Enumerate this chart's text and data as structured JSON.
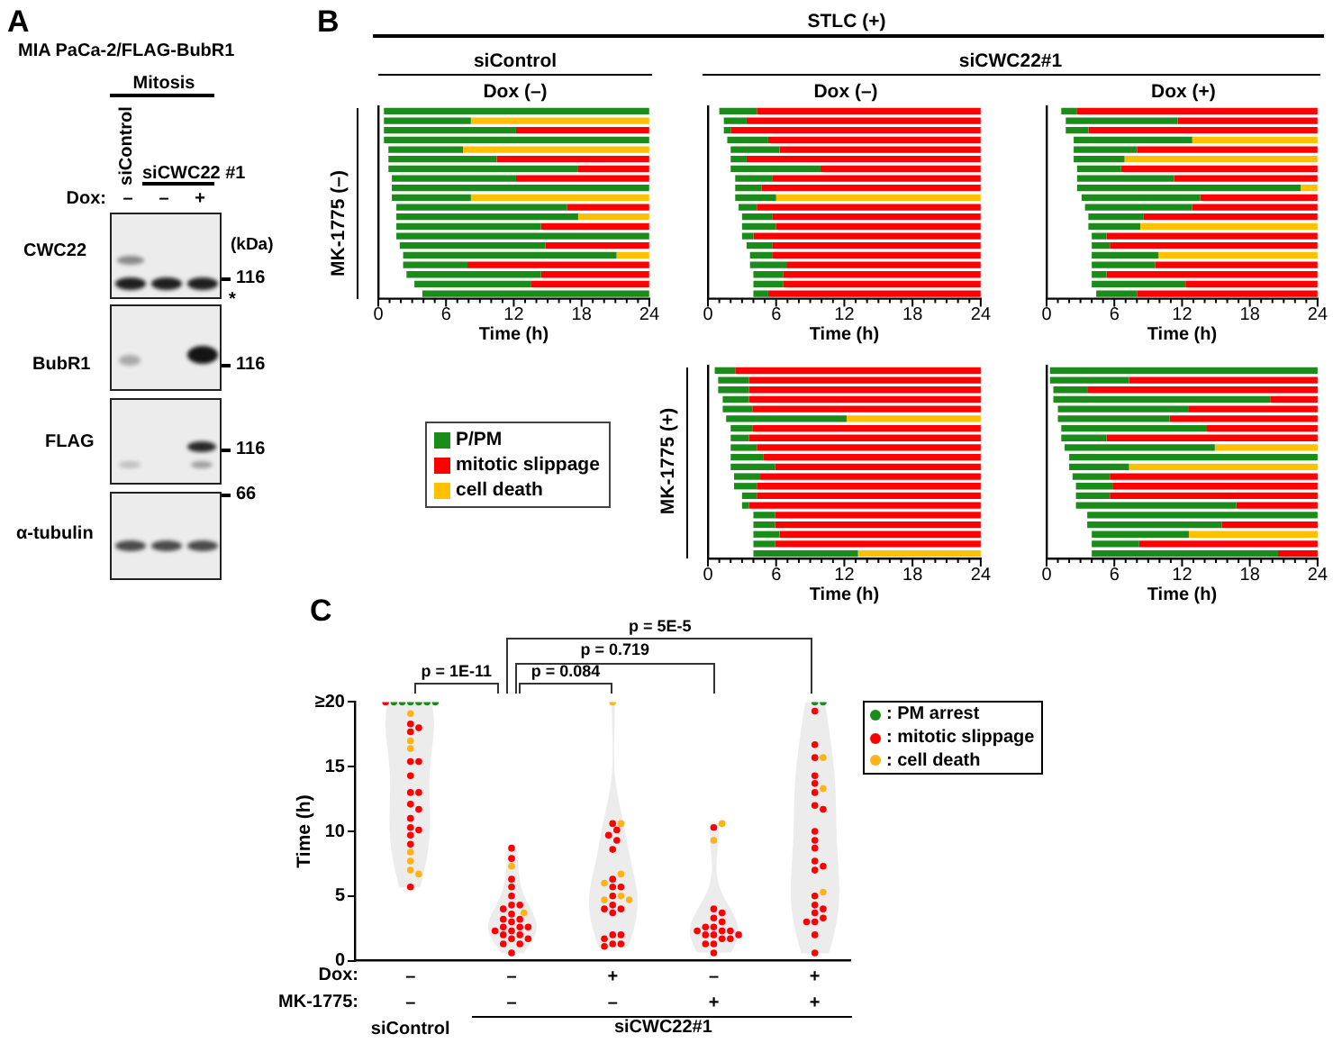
{
  "chart_data": [
    {
      "type": "other",
      "title": "MIA PaCa-2/FLAG-BubR1",
      "annotations": [
        "A",
        "Mitosis",
        "siControl",
        "siCWC22 #1",
        "Dox:",
        "–",
        "–",
        "+",
        "CWC22",
        "BubR1",
        "FLAG",
        "α-tubulin",
        "(kDa)",
        "116",
        "*",
        "116",
        "116",
        "66"
      ]
    },
    {
      "type": "bar",
      "orientation": "horizontal",
      "title": "Dox (–)",
      "xlabel": "Time (h)",
      "ylabel": "MK-1775 (–)",
      "annotations": [
        "B",
        "STLC (+)",
        "siControl"
      ],
      "legend": "bottom",
      "tick_labels": "x",
      "categories": [
        null,
        null,
        null,
        null,
        null,
        null,
        null,
        null,
        null,
        null,
        null,
        null,
        null,
        null,
        null,
        null,
        null,
        null,
        null,
        null
      ],
      "xlim": [
        0,
        24
      ],
      "xticks": [
        0,
        {
          "value": 1,
          "label": null
        },
        {
          "value": 2,
          "label": null
        },
        {
          "value": 3,
          "label": null
        },
        {
          "value": 4,
          "label": null
        },
        {
          "value": 5,
          "label": null
        },
        6,
        {
          "value": 7,
          "label": null
        },
        {
          "value": 8,
          "label": null
        },
        {
          "value": 9,
          "label": null
        },
        {
          "value": 10,
          "label": null
        },
        {
          "value": 11,
          "label": null
        },
        12,
        {
          "value": 13,
          "label": null
        },
        {
          "value": 14,
          "label": null
        },
        {
          "value": 15,
          "label": null
        },
        {
          "value": 16,
          "label": null
        },
        {
          "value": 17,
          "label": null
        },
        18,
        {
          "value": 19,
          "label": null
        },
        {
          "value": 20,
          "label": null
        },
        {
          "value": 21,
          "label": null
        },
        {
          "value": 22,
          "label": null
        },
        {
          "value": 23,
          "label": null
        },
        24
      ],
      "series": [
        {
          "name": "P/PM",
          "color": "#1a8c1a",
          "base": [
            0.5,
            0.5,
            0.5,
            0.5,
            0.9,
            0.9,
            0.9,
            1.2,
            1.2,
            1.2,
            1.6,
            1.6,
            1.6,
            1.6,
            1.9,
            2.2,
            2.2,
            2.5,
            3.2,
            3.9
          ],
          "values": [
            23.5,
            7.7,
            11.7,
            23.5,
            6.6,
            9.6,
            16.8,
            11.0,
            22.8,
            7.0,
            15.1,
            16.1,
            12.8,
            22.4,
            12.9,
            18.9,
            5.7,
            11.9,
            10.3,
            20.1
          ]
        },
        {
          "name": "mitotic slippage",
          "color": "#ff0000",
          "base": [
            null,
            null,
            12.2,
            null,
            null,
            10.5,
            17.7,
            12.2,
            null,
            null,
            16.7,
            null,
            14.4,
            null,
            14.8,
            null,
            7.9,
            14.4,
            13.5,
            null
          ],
          "values": [
            null,
            null,
            11.8,
            null,
            null,
            13.5,
            6.3,
            11.8,
            null,
            null,
            7.3,
            null,
            9.6,
            null,
            9.2,
            null,
            16.1,
            9.6,
            10.5,
            null
          ]
        },
        {
          "name": "cell death",
          "color": "#ffc000",
          "base": [
            null,
            8.2,
            null,
            null,
            7.5,
            null,
            null,
            null,
            null,
            8.2,
            null,
            17.7,
            null,
            null,
            null,
            21.1,
            null,
            null,
            null,
            null
          ],
          "values": [
            null,
            15.8,
            null,
            null,
            16.5,
            null,
            null,
            null,
            null,
            15.8,
            null,
            6.3,
            null,
            null,
            null,
            2.9,
            null,
            null,
            null,
            null
          ]
        }
      ]
    },
    {
      "type": "bar",
      "orientation": "horizontal",
      "title": "Dox (–)",
      "xlabel": "Time (h)",
      "annotations": [
        "siCWC22#1"
      ],
      "tick_labels": "x",
      "categories": [
        null,
        null,
        null,
        null,
        null,
        null,
        null,
        null,
        null,
        null,
        null,
        null,
        null,
        null,
        null,
        null,
        null,
        null,
        null,
        null
      ],
      "xlim": [
        0,
        24
      ],
      "xticks": [
        0,
        {
          "value": 1,
          "label": null
        },
        {
          "value": 2,
          "label": null
        },
        {
          "value": 3,
          "label": null
        },
        {
          "value": 4,
          "label": null
        },
        {
          "value": 5,
          "label": null
        },
        6,
        {
          "value": 7,
          "label": null
        },
        {
          "value": 8,
          "label": null
        },
        {
          "value": 9,
          "label": null
        },
        {
          "value": 10,
          "label": null
        },
        {
          "value": 11,
          "label": null
        },
        12,
        {
          "value": 13,
          "label": null
        },
        {
          "value": 14,
          "label": null
        },
        {
          "value": 15,
          "label": null
        },
        {
          "value": 16,
          "label": null
        },
        {
          "value": 17,
          "label": null
        },
        18,
        {
          "value": 19,
          "label": null
        },
        {
          "value": 20,
          "label": null
        },
        {
          "value": 21,
          "label": null
        },
        {
          "value": 22,
          "label": null
        },
        {
          "value": 23,
          "label": null
        },
        24
      ],
      "series": [
        {
          "color": "#1a8c1a",
          "base": [
            1.0,
            1.4,
            1.4,
            1.7,
            2.0,
            2.0,
            2.0,
            2.4,
            2.4,
            2.4,
            2.7,
            3.0,
            3.0,
            3.0,
            3.4,
            3.7,
            3.7,
            4.0,
            4.0,
            4.0
          ],
          "values": [
            3.3,
            2.0,
            0.6,
            3.6,
            4.3,
            1.4,
            7.9,
            3.3,
            2.3,
            3.6,
            1.6,
            2.7,
            3.0,
            1.0,
            2.3,
            2.0,
            3.2,
            2.6,
            2.6,
            1.3
          ]
        },
        {
          "color": "#ff0000",
          "base": [
            4.3,
            3.4,
            2.0,
            5.3,
            6.3,
            3.4,
            9.9,
            5.7,
            4.7,
            null,
            4.3,
            5.7,
            6.0,
            4.0,
            5.7,
            5.7,
            6.9,
            6.6,
            6.6,
            5.3
          ],
          "values": [
            19.7,
            20.6,
            22.0,
            18.7,
            17.7,
            20.6,
            14.1,
            18.3,
            19.3,
            null,
            19.7,
            18.3,
            18.0,
            20.0,
            18.3,
            18.3,
            17.1,
            17.4,
            17.4,
            18.7
          ]
        },
        {
          "color": "#ffc000",
          "base": [
            null,
            null,
            null,
            null,
            null,
            null,
            null,
            null,
            null,
            6.0,
            null,
            null,
            null,
            null,
            null,
            null,
            null,
            null,
            null,
            null
          ],
          "values": [
            null,
            null,
            null,
            null,
            null,
            null,
            null,
            null,
            null,
            18.0,
            null,
            null,
            null,
            null,
            null,
            null,
            null,
            null,
            null,
            null
          ]
        }
      ]
    },
    {
      "type": "bar",
      "orientation": "horizontal",
      "title": "Dox (+)",
      "xlabel": "Time (h)",
      "tick_labels": "x",
      "categories": [
        null,
        null,
        null,
        null,
        null,
        null,
        null,
        null,
        null,
        null,
        null,
        null,
        null,
        null,
        null,
        null,
        null,
        null,
        null,
        null
      ],
      "xlim": [
        0,
        24
      ],
      "xticks": [
        0,
        {
          "value": 1,
          "label": null
        },
        {
          "value": 2,
          "label": null
        },
        {
          "value": 3,
          "label": null
        },
        {
          "value": 4,
          "label": null
        },
        {
          "value": 5,
          "label": null
        },
        6,
        {
          "value": 7,
          "label": null
        },
        {
          "value": 8,
          "label": null
        },
        {
          "value": 9,
          "label": null
        },
        {
          "value": 10,
          "label": null
        },
        {
          "value": 11,
          "label": null
        },
        12,
        {
          "value": 13,
          "label": null
        },
        {
          "value": 14,
          "label": null
        },
        {
          "value": 15,
          "label": null
        },
        {
          "value": 16,
          "label": null
        },
        {
          "value": 17,
          "label": null
        },
        18,
        {
          "value": 19,
          "label": null
        },
        {
          "value": 20,
          "label": null
        },
        {
          "value": 21,
          "label": null
        },
        {
          "value": 22,
          "label": null
        },
        {
          "value": 23,
          "label": null
        },
        24
      ],
      "series": [
        {
          "color": "#1a8c1a",
          "base": [
            1.3,
            1.7,
            1.7,
            2.4,
            2.4,
            2.4,
            2.7,
            2.7,
            2.7,
            3.1,
            3.4,
            3.7,
            3.7,
            4.0,
            4.0,
            4.0,
            4.0,
            4.0,
            4.0,
            4.4
          ],
          "values": [
            1.4,
            9.9,
            2.0,
            10.5,
            5.6,
            4.5,
            3.9,
            8.6,
            19.8,
            10.5,
            9.5,
            4.9,
            4.6,
            1.3,
            1.6,
            5.9,
            5.6,
            1.3,
            8.3,
            3.6
          ]
        },
        {
          "color": "#ff0000",
          "base": [
            2.7,
            11.6,
            3.7,
            null,
            8.0,
            null,
            6.6,
            11.3,
            null,
            13.6,
            12.9,
            8.6,
            null,
            5.3,
            5.6,
            null,
            9.6,
            5.3,
            12.3,
            8.0
          ],
          "values": [
            21.3,
            12.4,
            20.3,
            null,
            16.0,
            null,
            17.4,
            12.7,
            null,
            10.4,
            11.1,
            15.4,
            null,
            18.7,
            18.4,
            null,
            14.4,
            18.7,
            11.7,
            16.0
          ]
        },
        {
          "color": "#ffc000",
          "base": [
            null,
            null,
            null,
            12.9,
            null,
            6.9,
            null,
            null,
            22.5,
            null,
            null,
            null,
            8.3,
            null,
            null,
            9.9,
            null,
            null,
            null,
            null
          ],
          "values": [
            null,
            null,
            null,
            11.1,
            null,
            17.1,
            null,
            null,
            1.5,
            null,
            null,
            null,
            15.7,
            null,
            null,
            14.1,
            null,
            null,
            null,
            null
          ]
        }
      ]
    },
    {
      "type": "bar",
      "orientation": "horizontal",
      "xlabel": "Time (h)",
      "ylabel": "MK-1775 (+)",
      "tick_labels": "x",
      "categories": [
        null,
        null,
        null,
        null,
        null,
        null,
        null,
        null,
        null,
        null,
        null,
        null,
        null,
        null,
        null,
        null,
        null,
        null,
        null,
        null
      ],
      "xlim": [
        0,
        24
      ],
      "xticks": [
        0,
        {
          "value": 1,
          "label": null
        },
        {
          "value": 2,
          "label": null
        },
        {
          "value": 3,
          "label": null
        },
        {
          "value": 4,
          "label": null
        },
        {
          "value": 5,
          "label": null
        },
        6,
        {
          "value": 7,
          "label": null
        },
        {
          "value": 8,
          "label": null
        },
        {
          "value": 9,
          "label": null
        },
        {
          "value": 10,
          "label": null
        },
        {
          "value": 11,
          "label": null
        },
        12,
        {
          "value": 13,
          "label": null
        },
        {
          "value": 14,
          "label": null
        },
        {
          "value": 15,
          "label": null
        },
        {
          "value": 16,
          "label": null
        },
        {
          "value": 17,
          "label": null
        },
        18,
        {
          "value": 19,
          "label": null
        },
        {
          "value": 20,
          "label": null
        },
        {
          "value": 21,
          "label": null
        },
        {
          "value": 22,
          "label": null
        },
        {
          "value": 23,
          "label": null
        },
        24
      ],
      "series": [
        {
          "color": "#1a8c1a",
          "base": [
            0.6,
            0.9,
            0.9,
            1.3,
            1.3,
            1.6,
            2.0,
            2.0,
            2.0,
            2.0,
            2.0,
            2.3,
            2.3,
            3.0,
            3.0,
            4.0,
            4.0,
            4.0,
            4.0,
            4.0
          ],
          "values": [
            1.8,
            2.7,
            2.7,
            2.3,
            2.6,
            10.6,
            1.9,
            1.6,
            2.3,
            2.9,
            3.9,
            2.3,
            2.0,
            1.3,
            0.6,
            1.9,
            1.9,
            2.3,
            1.9,
            9.2
          ]
        },
        {
          "color": "#ff0000",
          "base": [
            2.4,
            3.6,
            3.6,
            3.6,
            3.9,
            null,
            3.9,
            3.6,
            4.3,
            4.9,
            5.9,
            4.6,
            4.3,
            4.3,
            3.6,
            5.9,
            5.9,
            6.3,
            5.9,
            null
          ],
          "values": [
            21.6,
            20.4,
            20.4,
            20.4,
            20.1,
            null,
            20.1,
            20.4,
            19.7,
            19.1,
            18.1,
            19.4,
            19.7,
            19.7,
            20.4,
            18.1,
            18.1,
            17.7,
            18.1,
            null
          ]
        },
        {
          "color": "#ffc000",
          "base": [
            null,
            null,
            null,
            null,
            null,
            12.2,
            null,
            null,
            null,
            null,
            null,
            null,
            null,
            null,
            null,
            null,
            null,
            null,
            null,
            13.2
          ],
          "values": [
            null,
            null,
            null,
            null,
            null,
            11.8,
            null,
            null,
            null,
            null,
            null,
            null,
            null,
            null,
            null,
            null,
            null,
            null,
            null,
            10.8
          ]
        }
      ]
    },
    {
      "type": "bar",
      "orientation": "horizontal",
      "xlabel": "Time (h)",
      "tick_labels": "x",
      "categories": [
        null,
        null,
        null,
        null,
        null,
        null,
        null,
        null,
        null,
        null,
        null,
        null,
        null,
        null,
        null,
        null,
        null,
        null,
        null,
        null
      ],
      "xlim": [
        0,
        24
      ],
      "xticks": [
        0,
        {
          "value": 1,
          "label": null
        },
        {
          "value": 2,
          "label": null
        },
        {
          "value": 3,
          "label": null
        },
        {
          "value": 4,
          "label": null
        },
        {
          "value": 5,
          "label": null
        },
        6,
        {
          "value": 7,
          "label": null
        },
        {
          "value": 8,
          "label": null
        },
        {
          "value": 9,
          "label": null
        },
        {
          "value": 10,
          "label": null
        },
        {
          "value": 11,
          "label": null
        },
        12,
        {
          "value": 13,
          "label": null
        },
        {
          "value": 14,
          "label": null
        },
        {
          "value": 15,
          "label": null
        },
        {
          "value": 16,
          "label": null
        },
        {
          "value": 17,
          "label": null
        },
        18,
        {
          "value": 19,
          "label": null
        },
        {
          "value": 20,
          "label": null
        },
        {
          "value": 21,
          "label": null
        },
        {
          "value": 22,
          "label": null
        },
        {
          "value": 23,
          "label": null
        },
        24
      ],
      "series": [
        {
          "color": "#1a8c1a",
          "base": [
            0.3,
            0.3,
            0.6,
            0.6,
            1.0,
            1.0,
            1.3,
            1.3,
            1.6,
            2.0,
            2.0,
            2.3,
            2.6,
            2.6,
            2.6,
            3.6,
            3.6,
            4.0,
            4.0,
            4.0
          ],
          "values": [
            23.7,
            7.0,
            3.0,
            19.2,
            11.6,
            9.9,
            12.9,
            4.0,
            13.3,
            22.0,
            5.3,
            3.3,
            3.3,
            3.0,
            14.2,
            20.4,
            11.9,
            8.6,
            4.2,
            16.5
          ]
        },
        {
          "color": "#ff0000",
          "base": [
            null,
            7.3,
            3.6,
            19.8,
            12.6,
            10.9,
            14.2,
            5.3,
            null,
            null,
            null,
            5.6,
            5.9,
            5.6,
            16.8,
            null,
            15.5,
            null,
            8.2,
            20.5
          ],
          "values": [
            null,
            16.7,
            20.4,
            4.2,
            11.4,
            13.1,
            9.8,
            18.7,
            null,
            null,
            null,
            18.4,
            18.1,
            18.4,
            7.2,
            null,
            8.5,
            null,
            15.8,
            3.5
          ]
        },
        {
          "color": "#ffc000",
          "base": [
            null,
            null,
            null,
            null,
            null,
            null,
            null,
            null,
            14.9,
            null,
            7.3,
            null,
            null,
            null,
            null,
            null,
            null,
            12.6,
            null,
            null
          ],
          "values": [
            null,
            null,
            null,
            null,
            null,
            null,
            null,
            null,
            9.1,
            null,
            16.7,
            null,
            null,
            null,
            null,
            null,
            null,
            11.4,
            null,
            null
          ]
        }
      ]
    },
    {
      "type": "scatter",
      "ylabel": "Time (h)",
      "annotations": [
        "C",
        "p = 1E-11",
        "p = 0.084",
        "p = 0.719",
        "p = 5E-5",
        "Dox:",
        "MK-1775:",
        "siCWC22#1"
      ],
      "categories": [
        "–\n–\nsiControl",
        "–\n–",
        "+\n–",
        "–\n+",
        "+\n+"
      ],
      "ylim": [
        0,
        20
      ],
      "yticks": [
        0,
        5,
        10,
        15,
        {
          "value": 20,
          "label": "≥20"
        }
      ],
      "marker": "circle",
      "legend": "top right",
      "series": [
        {
          "name": ": PM arrest",
          "color": "#1a8c1a",
          "x": [
            "–\n–\nsiControl",
            "–\n–\nsiControl",
            "–\n–\nsiControl",
            "–\n–\nsiControl",
            "–\n–\nsiControl",
            "–\n–\nsiControl",
            "+\n+",
            "+\n+"
          ],
          "values": [
            20,
            20,
            20,
            20,
            20,
            20,
            20,
            20
          ]
        },
        {
          "name": ": mitotic slippage",
          "color": "#ff0000",
          "x": [
            "–\n–\nsiControl",
            "–\n–\nsiControl",
            "–\n–\nsiControl",
            "–\n–\nsiControl",
            "–\n–\nsiControl",
            "–\n–\nsiControl",
            "–\n–\nsiControl",
            "–\n–\nsiControl",
            "–\n–\nsiControl",
            "–\n–\nsiControl",
            "–\n–\nsiControl",
            "–\n–\nsiControl",
            "–\n–\nsiControl",
            "–\n–\nsiControl",
            "–\n–\nsiControl",
            "–\n–\nsiControl",
            "–\n–\nsiControl",
            "–\n–",
            "–\n–",
            "–\n–",
            "–\n–",
            "–\n–",
            "–\n–",
            "–\n–",
            "–\n–",
            "–\n–",
            "–\n–",
            "–\n–",
            "–\n–",
            "–\n–",
            "–\n–",
            "–\n–",
            "–\n–",
            "–\n–",
            "–\n–",
            "–\n–",
            "–\n–",
            "–\n–",
            "–\n–",
            "–\n–",
            "–\n–",
            "+\n–",
            "+\n–",
            "+\n–",
            "+\n–",
            "+\n–",
            "+\n–",
            "+\n–",
            "+\n–",
            "+\n–",
            "+\n–",
            "+\n–",
            "+\n–",
            "+\n–",
            "+\n–",
            "+\n–",
            "+\n–",
            "+\n–",
            "+\n–",
            "+\n–",
            "–\n+",
            "–\n+",
            "–\n+",
            "–\n+",
            "–\n+",
            "–\n+",
            "–\n+",
            "–\n+",
            "–\n+",
            "–\n+",
            "–\n+",
            "–\n+",
            "–\n+",
            "–\n+",
            "–\n+",
            "–\n+",
            "–\n+",
            "–\n+",
            "+\n+",
            "+\n+",
            "+\n+",
            "+\n+",
            "+\n+",
            "+\n+",
            "+\n+",
            "+\n+",
            "+\n+",
            "+\n+",
            "+\n+",
            "+\n+",
            "+\n+",
            "+\n+",
            "+\n+",
            "+\n+",
            "+\n+",
            "+\n+",
            "+\n+",
            "+\n+",
            "+\n+",
            "+\n+",
            "+\n+"
          ],
          "values": [
            20,
            18.3,
            18.0,
            17.7,
            15.4,
            15.4,
            14.3,
            13.0,
            13.0,
            12.1,
            11.7,
            11.0,
            10.3,
            10.1,
            9.7,
            9.0,
            5.7,
            8.7,
            7.9,
            6.3,
            5.7,
            5.0,
            4.3,
            4.3,
            4.0,
            3.6,
            3.2,
            3.2,
            3.0,
            2.6,
            2.6,
            2.6,
            2.3,
            2.3,
            2.0,
            2.0,
            1.7,
            1.7,
            1.3,
            1.3,
            0.6,
            10.6,
            10.1,
            9.7,
            9.3,
            8.6,
            6.3,
            5.7,
            5.7,
            5.0,
            4.3,
            4.0,
            4.0,
            3.7,
            2.0,
            2.0,
            1.7,
            1.3,
            1.3,
            1.1,
            10.3,
            4.0,
            3.7,
            3.3,
            3.0,
            2.6,
            2.6,
            2.3,
            2.3,
            2.3,
            2.0,
            2.0,
            2.0,
            1.7,
            1.7,
            1.3,
            1.3,
            0.6,
            19.3,
            16.7,
            15.7,
            14.3,
            13.7,
            13.0,
            12.0,
            11.7,
            10.0,
            9.3,
            8.7,
            7.7,
            7.3,
            7.0,
            5.0,
            4.3,
            4.0,
            3.7,
            3.3,
            3.0,
            3.0,
            2.0,
            0.6
          ]
        },
        {
          "name": ": cell death",
          "color": "#ffb31a",
          "x": [
            "–\n–\nsiControl",
            "–\n–\nsiControl",
            "–\n–\nsiControl",
            "–\n–\nsiControl",
            "–\n–\nsiControl",
            "–\n–\nsiControl",
            "–\n–\nsiControl",
            "–\n–",
            "–\n–",
            "+\n–",
            "+\n–",
            "+\n–",
            "+\n–",
            "+\n–",
            "+\n–",
            "+\n–",
            "–\n+",
            "–\n+",
            "+\n+",
            "+\n+",
            "+\n+"
          ],
          "values": [
            19.1,
            17.0,
            16.4,
            8.4,
            7.7,
            7.0,
            6.7,
            7.3,
            3.7,
            20,
            10.6,
            6.7,
            6.0,
            5.0,
            4.7,
            4.7,
            10.6,
            9.3,
            15.7,
            13.3,
            5.3
          ]
        }
      ]
    }
  ]
}
